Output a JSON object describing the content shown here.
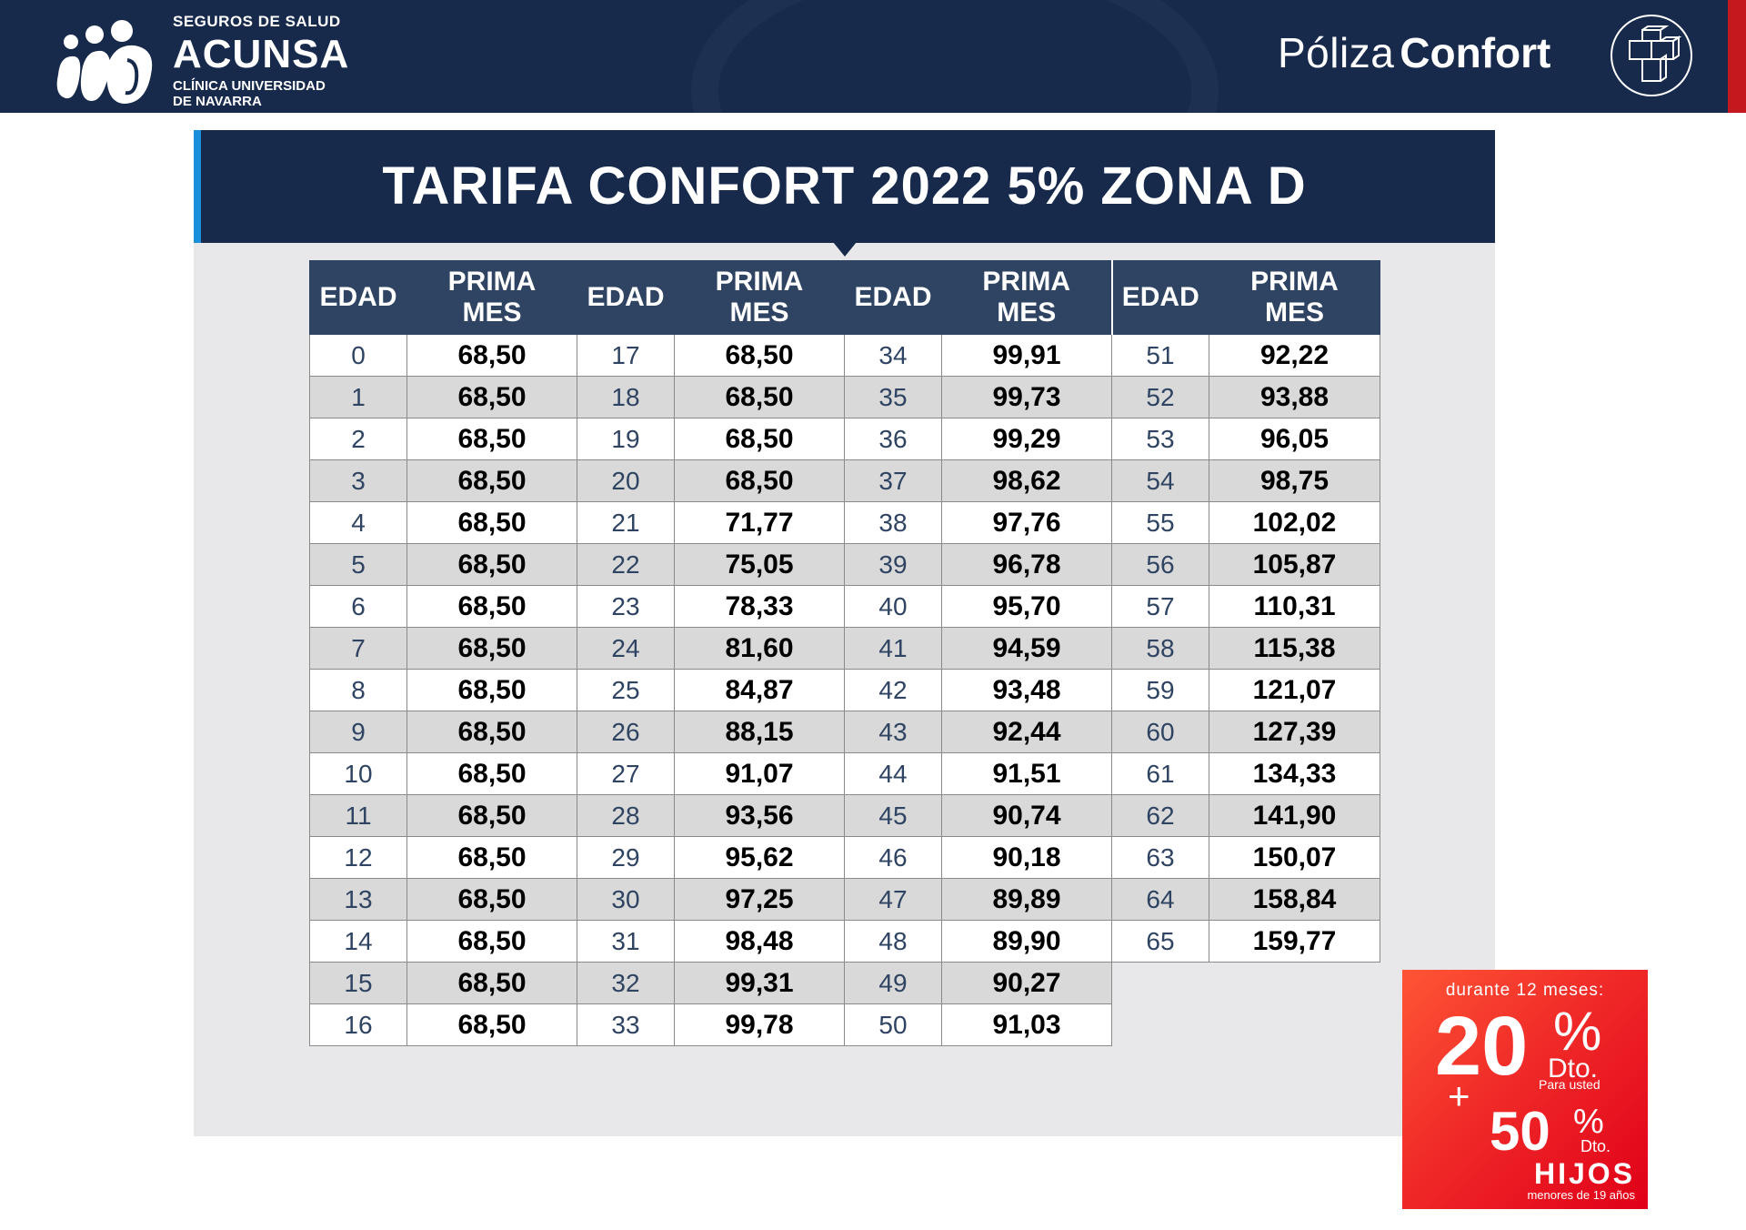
{
  "header": {
    "brand_top": "SEGUROS DE SALUD",
    "brand_name": "ACUNSA",
    "brand_sub_1": "CLÍNICA UNIVERSIDAD",
    "brand_sub_2": "DE NAVARRA",
    "policy_light": "Póliza",
    "policy_bold": "Confort",
    "colors": {
      "navy": "#172a4c",
      "red_accent": "#c4181f",
      "blue_accent": "#1a8fdc"
    }
  },
  "title": "TARIFA CONFORT 2022 5% ZONA D",
  "table": {
    "col_age": "EDAD",
    "col_price_1": "PRIMA",
    "col_price_2": "MES",
    "columns": [
      {
        "rows": [
          {
            "age": "0",
            "price": "68,50"
          },
          {
            "age": "1",
            "price": "68,50"
          },
          {
            "age": "2",
            "price": "68,50"
          },
          {
            "age": "3",
            "price": "68,50"
          },
          {
            "age": "4",
            "price": "68,50"
          },
          {
            "age": "5",
            "price": "68,50"
          },
          {
            "age": "6",
            "price": "68,50"
          },
          {
            "age": "7",
            "price": "68,50"
          },
          {
            "age": "8",
            "price": "68,50"
          },
          {
            "age": "9",
            "price": "68,50"
          },
          {
            "age": "10",
            "price": "68,50"
          },
          {
            "age": "11",
            "price": "68,50"
          },
          {
            "age": "12",
            "price": "68,50"
          },
          {
            "age": "13",
            "price": "68,50"
          },
          {
            "age": "14",
            "price": "68,50"
          },
          {
            "age": "15",
            "price": "68,50"
          },
          {
            "age": "16",
            "price": "68,50"
          }
        ]
      },
      {
        "rows": [
          {
            "age": "17",
            "price": "68,50"
          },
          {
            "age": "18",
            "price": "68,50"
          },
          {
            "age": "19",
            "price": "68,50"
          },
          {
            "age": "20",
            "price": "68,50"
          },
          {
            "age": "21",
            "price": "71,77"
          },
          {
            "age": "22",
            "price": "75,05"
          },
          {
            "age": "23",
            "price": "78,33"
          },
          {
            "age": "24",
            "price": "81,60"
          },
          {
            "age": "25",
            "price": "84,87"
          },
          {
            "age": "26",
            "price": "88,15"
          },
          {
            "age": "27",
            "price": "91,07"
          },
          {
            "age": "28",
            "price": "93,56"
          },
          {
            "age": "29",
            "price": "95,62"
          },
          {
            "age": "30",
            "price": "97,25"
          },
          {
            "age": "31",
            "price": "98,48"
          },
          {
            "age": "32",
            "price": "99,31"
          },
          {
            "age": "33",
            "price": "99,78"
          }
        ]
      },
      {
        "rows": [
          {
            "age": "34",
            "price": "99,91"
          },
          {
            "age": "35",
            "price": "99,73"
          },
          {
            "age": "36",
            "price": "99,29"
          },
          {
            "age": "37",
            "price": "98,62"
          },
          {
            "age": "38",
            "price": "97,76"
          },
          {
            "age": "39",
            "price": "96,78"
          },
          {
            "age": "40",
            "price": "95,70"
          },
          {
            "age": "41",
            "price": "94,59"
          },
          {
            "age": "42",
            "price": "93,48"
          },
          {
            "age": "43",
            "price": "92,44"
          },
          {
            "age": "44",
            "price": "91,51"
          },
          {
            "age": "45",
            "price": "90,74"
          },
          {
            "age": "46",
            "price": "90,18"
          },
          {
            "age": "47",
            "price": "89,89"
          },
          {
            "age": "48",
            "price": "89,90"
          },
          {
            "age": "49",
            "price": "90,27"
          },
          {
            "age": "50",
            "price": "91,03"
          }
        ]
      },
      {
        "rows": [
          {
            "age": "51",
            "price": "92,22"
          },
          {
            "age": "52",
            "price": "93,88"
          },
          {
            "age": "53",
            "price": "96,05"
          },
          {
            "age": "54",
            "price": "98,75"
          },
          {
            "age": "55",
            "price": "102,02"
          },
          {
            "age": "56",
            "price": "105,87"
          },
          {
            "age": "57",
            "price": "110,31"
          },
          {
            "age": "58",
            "price": "115,38"
          },
          {
            "age": "59",
            "price": "121,07"
          },
          {
            "age": "60",
            "price": "127,39"
          },
          {
            "age": "61",
            "price": "134,33"
          },
          {
            "age": "62",
            "price": "141,90"
          },
          {
            "age": "63",
            "price": "150,07"
          },
          {
            "age": "64",
            "price": "158,84"
          },
          {
            "age": "65",
            "price": "159,77"
          }
        ]
      }
    ]
  },
  "promo": {
    "during": "durante 12 meses:",
    "discount_1": "20",
    "percent": "%",
    "dto": "Dto.",
    "discount_1_target": "Para usted",
    "plus": "+",
    "discount_2": "50",
    "discount_2_target": "HIJOS",
    "discount_2_note": "menores de 19 años"
  }
}
